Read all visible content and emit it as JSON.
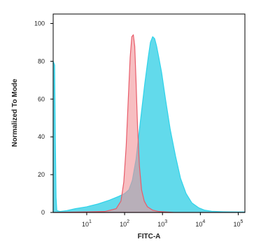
{
  "chart_data": {
    "type": "area",
    "xlabel": "FITC-A",
    "ylabel": "Normalized To Mode",
    "x_scale": "log",
    "xlim": [
      1.3,
      150000
    ],
    "ylim": [
      0,
      105
    ],
    "x_ticks": [
      {
        "value": 10,
        "base": "10",
        "exp": "1"
      },
      {
        "value": 100,
        "base": "10",
        "exp": "2"
      },
      {
        "value": 1000,
        "base": "10",
        "exp": "3"
      },
      {
        "value": 10000,
        "base": "10",
        "exp": "4"
      },
      {
        "value": 100000,
        "base": "10",
        "exp": "5"
      }
    ],
    "y_ticks": [
      "0",
      "20",
      "40",
      "60",
      "80",
      "100"
    ],
    "grid": false,
    "series": [
      {
        "color": "#2fd3ea",
        "fill": "#5ad8ea",
        "points": [
          [
            1.3,
            80
          ],
          [
            1.42,
            78
          ],
          [
            1.48,
            40
          ],
          [
            1.55,
            8
          ],
          [
            1.62,
            1
          ],
          [
            2,
            0.5
          ],
          [
            3,
            1
          ],
          [
            5,
            2
          ],
          [
            10,
            3
          ],
          [
            20,
            4.5
          ],
          [
            40,
            6.5
          ],
          [
            70,
            8.5
          ],
          [
            100,
            10
          ],
          [
            130,
            12
          ],
          [
            160,
            17
          ],
          [
            200,
            28
          ],
          [
            260,
            48
          ],
          [
            340,
            68
          ],
          [
            420,
            82
          ],
          [
            480,
            90
          ],
          [
            550,
            93
          ],
          [
            620,
            92
          ],
          [
            700,
            88
          ],
          [
            800,
            82
          ],
          [
            950,
            74
          ],
          [
            1200,
            60
          ],
          [
            1600,
            44
          ],
          [
            2200,
            30
          ],
          [
            3000,
            18
          ],
          [
            4200,
            10
          ],
          [
            6000,
            5
          ],
          [
            9000,
            2.5
          ],
          [
            13000,
            1.2
          ],
          [
            20000,
            0.6
          ],
          [
            40000,
            0.4
          ],
          [
            100000,
            0.3
          ],
          [
            150000,
            0.3
          ]
        ]
      },
      {
        "color": "#e85c6a",
        "fill": "#f29297",
        "points": [
          [
            1.3,
            0
          ],
          [
            30,
            0.5
          ],
          [
            60,
            2
          ],
          [
            80,
            6
          ],
          [
            95,
            16
          ],
          [
            110,
            35
          ],
          [
            125,
            60
          ],
          [
            140,
            82
          ],
          [
            155,
            93
          ],
          [
            170,
            94
          ],
          [
            185,
            88
          ],
          [
            200,
            70
          ],
          [
            220,
            45
          ],
          [
            245,
            25
          ],
          [
            280,
            12
          ],
          [
            330,
            6
          ],
          [
            400,
            3
          ],
          [
            550,
            1.2
          ],
          [
            800,
            0.5
          ],
          [
            2000,
            0
          ],
          [
            150000,
            0
          ]
        ]
      }
    ]
  }
}
